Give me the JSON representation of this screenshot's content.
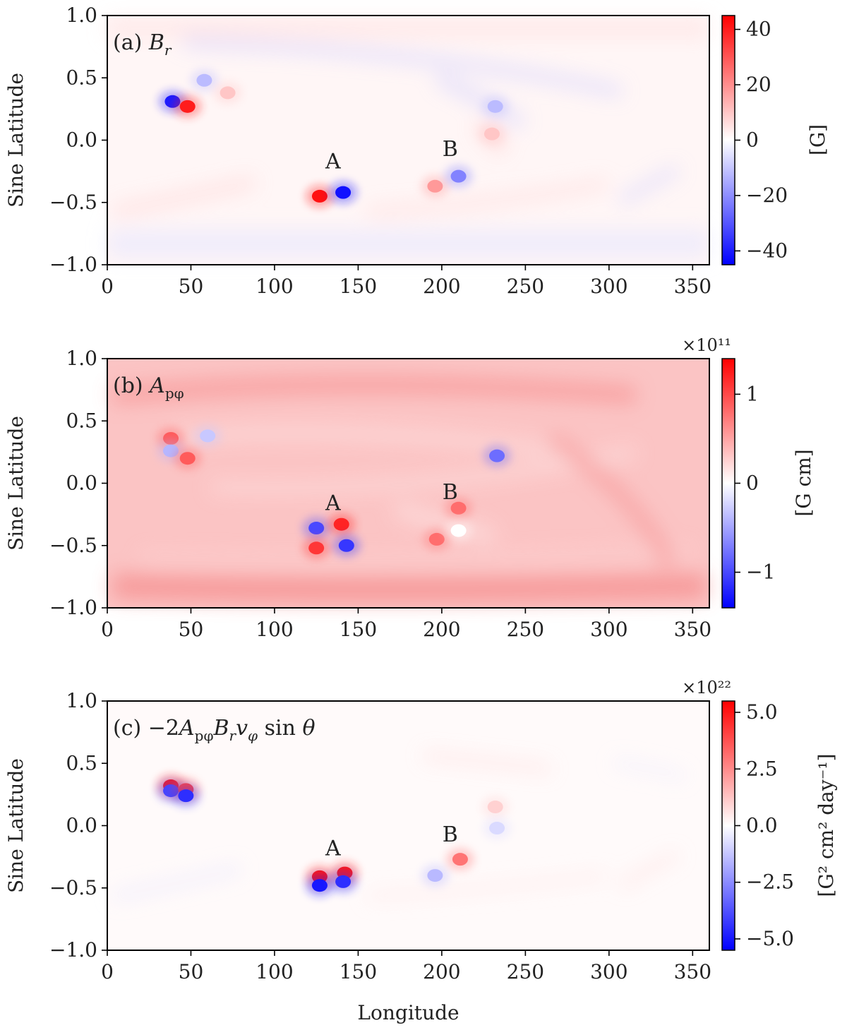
{
  "chart_data": [
    {
      "type": "heatmap",
      "panel_label": "(a)",
      "title": "B_r",
      "ylabel": "Sine Latitude",
      "xlabel": "",
      "xlim": [
        0,
        360
      ],
      "ylim": [
        -1.0,
        1.0
      ],
      "x_ticks": [
        "0",
        "50",
        "100",
        "150",
        "200",
        "250",
        "300",
        "350"
      ],
      "y_ticks": [
        "1.0",
        "0.5",
        "0.0",
        "−0.5",
        "−1.0"
      ],
      "colorbar": {
        "label": "[G]",
        "range": [
          -45,
          45
        ],
        "ticks": [
          "40",
          "20",
          "0",
          "−20",
          "−40"
        ],
        "exponent": ""
      },
      "regions": [
        {
          "lon": 39,
          "sinlat": 0.31,
          "value": -40
        },
        {
          "lon": 48,
          "sinlat": 0.27,
          "value": 40
        },
        {
          "lon": 58,
          "sinlat": 0.48,
          "value": -12
        },
        {
          "lon": 72,
          "sinlat": 0.38,
          "value": 10
        },
        {
          "lon": 127,
          "sinlat": -0.45,
          "value": 42
        },
        {
          "lon": 141,
          "sinlat": -0.42,
          "value": -42
        },
        {
          "lon": 196,
          "sinlat": -0.37,
          "value": 18
        },
        {
          "lon": 210,
          "sinlat": -0.29,
          "value": -22
        },
        {
          "lon": 232,
          "sinlat": 0.27,
          "value": -12
        },
        {
          "lon": 230,
          "sinlat": 0.05,
          "value": 10
        }
      ],
      "annotations": [
        {
          "text": "A",
          "lon": 135,
          "sinlat": -0.17
        },
        {
          "text": "B",
          "lon": 205,
          "sinlat": -0.07
        }
      ]
    },
    {
      "type": "heatmap",
      "panel_label": "(b)",
      "title": "A_pφ",
      "ylabel": "Sine Latitude",
      "xlabel": "",
      "xlim": [
        0,
        360
      ],
      "ylim": [
        -1.0,
        1.0
      ],
      "x_ticks": [
        "0",
        "50",
        "100",
        "150",
        "200",
        "250",
        "300",
        "350"
      ],
      "y_ticks": [
        "1.0",
        "0.5",
        "0.0",
        "−0.5",
        "−1.0"
      ],
      "colorbar": {
        "label": "[G cm]",
        "range": [
          -1.4,
          1.4
        ],
        "ticks": [
          "1",
          "0",
          "−1"
        ],
        "exponent": "×10¹¹"
      },
      "regions": [
        {
          "lon": 38,
          "sinlat": 0.36,
          "value": 0.9
        },
        {
          "lon": 38,
          "sinlat": 0.26,
          "value": -0.4
        },
        {
          "lon": 48,
          "sinlat": 0.2,
          "value": 0.9
        },
        {
          "lon": 60,
          "sinlat": 0.38,
          "value": -0.3
        },
        {
          "lon": 125,
          "sinlat": -0.36,
          "value": -1.0
        },
        {
          "lon": 140,
          "sinlat": -0.33,
          "value": 1.2
        },
        {
          "lon": 125,
          "sinlat": -0.52,
          "value": 1.1
        },
        {
          "lon": 143,
          "sinlat": -0.5,
          "value": -1.1
        },
        {
          "lon": 233,
          "sinlat": 0.22,
          "value": -0.8
        },
        {
          "lon": 210,
          "sinlat": -0.2,
          "value": 0.8
        },
        {
          "lon": 197,
          "sinlat": -0.45,
          "value": 0.8
        },
        {
          "lon": 210,
          "sinlat": -0.38,
          "value": 0.0
        }
      ],
      "annotations": [
        {
          "text": "A",
          "lon": 135,
          "sinlat": -0.16
        },
        {
          "text": "B",
          "lon": 205,
          "sinlat": -0.07
        }
      ]
    },
    {
      "type": "heatmap",
      "panel_label": "(c)",
      "title": "−2A_pφ B_r v_φ sin θ",
      "ylabel": "Sine Latitude",
      "xlabel": "Longitude",
      "xlim": [
        0,
        360
      ],
      "ylim": [
        -1.0,
        1.0
      ],
      "x_ticks": [
        "0",
        "50",
        "100",
        "150",
        "200",
        "250",
        "300",
        "350"
      ],
      "y_ticks": [
        "1.0",
        "0.5",
        "0.0",
        "−0.5",
        "−1.0"
      ],
      "colorbar": {
        "label": "[G² cm² day⁻¹]",
        "range": [
          -5.5,
          5.5
        ],
        "ticks": [
          "5.0",
          "2.5",
          "0.0",
          "−2.5",
          "−5.0"
        ],
        "exponent": "×10²²"
      },
      "regions": [
        {
          "lon": 38,
          "sinlat": 0.32,
          "value": 5.0
        },
        {
          "lon": 38,
          "sinlat": 0.28,
          "value": -4.0
        },
        {
          "lon": 47,
          "sinlat": 0.29,
          "value": 4.0
        },
        {
          "lon": 47,
          "sinlat": 0.24,
          "value": -4.5
        },
        {
          "lon": 127,
          "sinlat": -0.41,
          "value": 5.0
        },
        {
          "lon": 127,
          "sinlat": -0.48,
          "value": -5.0
        },
        {
          "lon": 142,
          "sinlat": -0.38,
          "value": 5.0
        },
        {
          "lon": 141,
          "sinlat": -0.45,
          "value": -4.5
        },
        {
          "lon": 196,
          "sinlat": -0.4,
          "value": -1.5
        },
        {
          "lon": 211,
          "sinlat": -0.27,
          "value": 3.0
        },
        {
          "lon": 232,
          "sinlat": 0.15,
          "value": 1.0
        },
        {
          "lon": 233,
          "sinlat": -0.02,
          "value": -0.8
        }
      ],
      "annotations": [
        {
          "text": "A",
          "lon": 135,
          "sinlat": -0.18
        },
        {
          "text": "B",
          "lon": 205,
          "sinlat": -0.07
        }
      ]
    }
  ],
  "colors": {
    "positive": "#ff0000",
    "negative": "#0000ff",
    "zero": "#ffffff"
  }
}
